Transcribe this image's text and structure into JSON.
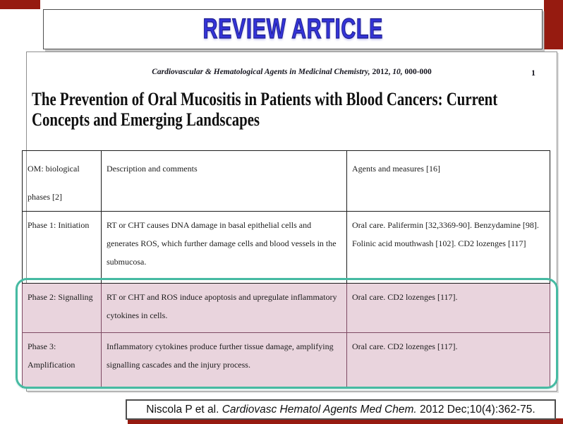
{
  "slide": {
    "colors": {
      "accent_red": "#961b10",
      "banner_blue": "#3434d8",
      "highlight_fill": "#e9d4dd",
      "highlight_border": "#46baa2"
    },
    "banner": {
      "label": "REVIEW ARTICLE"
    },
    "document": {
      "journal_header": {
        "name": "Cardiovascular & Hematological Agents in Medicinal Chemistry, ",
        "year": "2012, ",
        "volume": "10, ",
        "pages": "000-000"
      },
      "page_number": "1",
      "title_lines": [
        "The Prevention of Oral Mucositis in Patients with Blood Cancers: Current",
        "Concepts and Emerging Landscapes"
      ],
      "table": {
        "columns": [
          "OM: biological phases [2]",
          "Description and comments",
          "Agents and measures [16]"
        ],
        "rows": [
          {
            "phase": "Phase 1: Initiation",
            "description": "RT or CHT causes DNA damage in basal epithelial cells and generates ROS, which further damage cells and blood vessels in the submucosa.",
            "agents": "Oral care. Palifermin [32,3369-90]. Benzydamine [98]. Folinic acid mouthwash [102]. CD2 lozenges [117]",
            "highlighted": false
          },
          {
            "phase": "Phase 2: Signalling",
            "description": "RT or CHT and ROS induce apoptosis and upregulate inflammatory cytokines in cells.",
            "agents": "Oral care. CD2 lozenges [117].",
            "highlighted": true
          },
          {
            "phase": "Phase 3: Amplification",
            "description": "Inflammatory cytokines produce further tissue damage, amplifying signalling cascades and the injury process.",
            "agents": "Oral care. CD2 lozenges [117].",
            "highlighted": true
          }
        ]
      }
    },
    "citation": {
      "authors": "Niscola P et al. ",
      "journal": "Cardiovasc Hematol Agents Med Chem.",
      "details": " 2012 Dec;10(4):362-75."
    }
  }
}
